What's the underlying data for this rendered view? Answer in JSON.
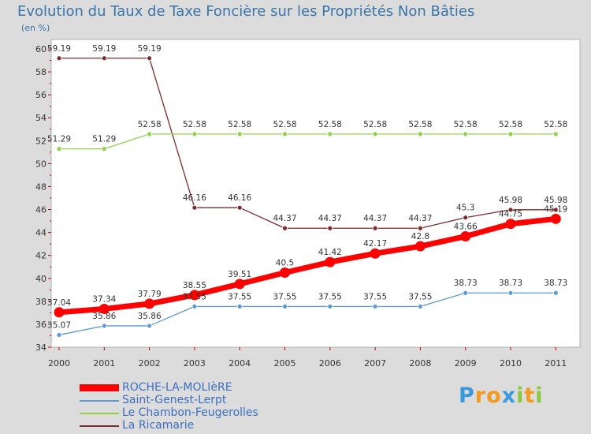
{
  "chart_data": {
    "type": "line",
    "title": "Evolution du Taux de Taxe Foncière sur les Propriétés Non Bâties",
    "unit_label": "(en %)",
    "xlabel": "",
    "ylabel": "",
    "ylim": [
      34,
      60
    ],
    "y_ticks": [
      "34",
      "36",
      "38",
      "40",
      "42",
      "44",
      "46",
      "48",
      "50",
      "52",
      "54",
      "56",
      "58",
      "60"
    ],
    "categories": [
      "2000",
      "2001",
      "2002",
      "2003",
      "2004",
      "2005",
      "2006",
      "2007",
      "2008",
      "2009",
      "2010",
      "2011"
    ],
    "series": [
      {
        "name": "ROCHE-LA-MOLIèRE",
        "color": "#ff0000",
        "values": [
          37.04,
          37.34,
          37.79,
          38.55,
          39.51,
          40.5,
          41.42,
          42.17,
          42.8,
          43.66,
          44.75,
          45.19
        ],
        "labels": [
          "37.04",
          "37.34",
          "37.79",
          "38.55",
          "39.51",
          "40.5",
          "41.42",
          "42.17",
          "42.8",
          "43.66",
          "44.75",
          "45.19"
        ]
      },
      {
        "name": "Saint-Genest-Lerpt",
        "color": "#5b9bd5",
        "values": [
          35.07,
          35.86,
          35.86,
          37.55,
          37.55,
          37.55,
          37.55,
          37.55,
          37.55,
          38.73,
          38.73,
          38.73
        ],
        "labels": [
          "35.07",
          "35.86",
          "35.86",
          "37.55",
          "37.55",
          "37.55",
          "37.55",
          "37.55",
          "37.55",
          "38.73",
          "38.73",
          "38.73"
        ]
      },
      {
        "name": "Le Chambon-Feugerolles",
        "color": "#92d050",
        "values": [
          51.29,
          51.29,
          52.58,
          52.58,
          52.58,
          52.58,
          52.58,
          52.58,
          52.58,
          52.58,
          52.58,
          52.58
        ],
        "labels": [
          "51.29",
          "51.29",
          "52.58",
          "52.58",
          "52.58",
          "52.58",
          "52.58",
          "52.58",
          "52.58",
          "52.58",
          "52.58",
          "52.58"
        ]
      },
      {
        "name": "La Ricamarie",
        "color": "#7b2c2c",
        "values": [
          59.19,
          59.19,
          59.19,
          46.16,
          46.16,
          44.37,
          44.37,
          44.37,
          44.37,
          45.3,
          45.98,
          45.98
        ],
        "labels": [
          "59.19",
          "59.19",
          "59.19",
          "46.16",
          "46.16",
          "44.37",
          "44.37",
          "44.37",
          "44.37",
          "45.3",
          "45.98",
          "45.98"
        ]
      }
    ],
    "grid": false,
    "legend_position": "bottom-left"
  },
  "logo": {
    "text": "Proxiti",
    "letters": [
      "P",
      "r",
      "o",
      "x",
      "i",
      "t",
      "i"
    ],
    "colors": [
      "#3a9ad9",
      "#f29a1f",
      "#f29a1f",
      "#3a9ad9",
      "#8cc63f",
      "#f29a1f",
      "#8cc63f"
    ]
  }
}
